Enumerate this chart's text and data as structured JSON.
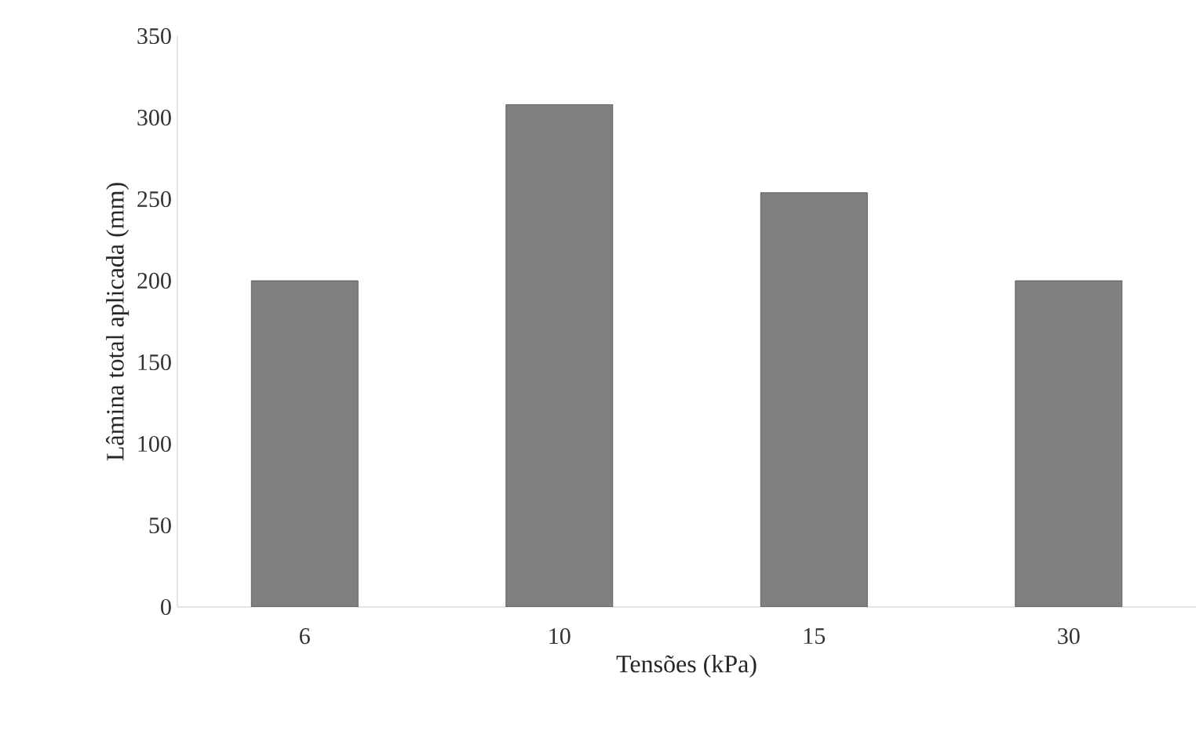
{
  "chart_data": {
    "type": "bar",
    "xlabel": "Tensões (kPa)",
    "ylabel": "Lâmina  total aplicada (mm)",
    "categories": [
      "6",
      "10",
      "15",
      "30"
    ],
    "values": [
      200,
      308,
      254,
      200
    ],
    "color": "#808080",
    "ylim": [
      0,
      350
    ],
    "yticks": [
      0,
      50,
      100,
      150,
      200,
      250,
      300,
      350
    ],
    "grid": false
  }
}
